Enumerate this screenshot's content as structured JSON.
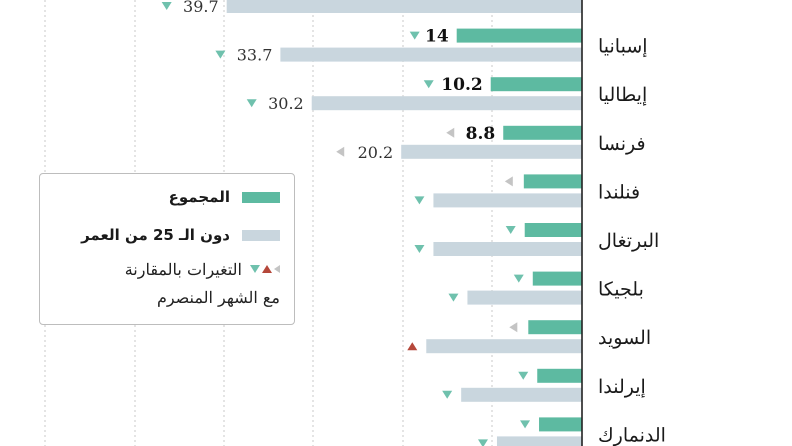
{
  "chart_data": {
    "type": "bar",
    "orientation": "horizontal",
    "grid": true,
    "series": [
      {
        "key": "total",
        "name": "المجموع",
        "color": "#5dbaa1"
      },
      {
        "key": "youth",
        "name": "دون الـ 25 من العمر",
        "color": "#c9d6de"
      }
    ],
    "rows": [
      {
        "country": "",
        "total": null,
        "youth": 39.7,
        "total_label": "",
        "youth_label": "39.7",
        "total_change": null,
        "youth_change": "down"
      },
      {
        "country": "إسبانيا",
        "total": 14,
        "youth": 33.7,
        "total_label": "14",
        "youth_label": "33.7",
        "total_change": "down",
        "youth_change": "down"
      },
      {
        "country": "إيطاليا",
        "total": 10.2,
        "youth": 30.2,
        "total_label": "10.2",
        "youth_label": "30.2",
        "total_change": "down",
        "youth_change": "down"
      },
      {
        "country": "فرنسا",
        "total": 8.8,
        "youth": 20.2,
        "total_label": "8.8",
        "youth_label": "20.2",
        "total_change": "flat",
        "youth_change": "flat"
      },
      {
        "country": "فنلندا",
        "total": 6.5,
        "youth": 16.6,
        "total_label": "",
        "youth_label": "",
        "total_change": "flat",
        "youth_change": "down"
      },
      {
        "country": "البرتغال",
        "total": 6.4,
        "youth": 16.6,
        "total_label": "",
        "youth_label": "",
        "total_change": "down",
        "youth_change": "down"
      },
      {
        "country": "بلجيكا",
        "total": 5.5,
        "youth": 12.8,
        "total_label": "",
        "youth_label": "",
        "total_change": "down",
        "youth_change": "down"
      },
      {
        "country": "السويد",
        "total": 6.0,
        "youth": 17.4,
        "total_label": "",
        "youth_label": "",
        "total_change": "flat",
        "youth_change": "up"
      },
      {
        "country": "إيرلندا",
        "total": 5.0,
        "youth": 13.5,
        "total_label": "",
        "youth_label": "",
        "total_change": "down",
        "youth_change": "down"
      },
      {
        "country": "الدنمارك",
        "total": 4.8,
        "youth": 9.5,
        "total_label": "",
        "youth_label": "",
        "total_change": "down",
        "youth_change": "down"
      }
    ],
    "change_colors": {
      "down": "#6fc1ad",
      "up": "#b5473a",
      "flat": "#c4c4c4"
    }
  },
  "legend": {
    "total_label": "المجموع",
    "youth_label": "دون الـ 25 من العمر",
    "changes_line1": "التغيرات بالمقارنة",
    "changes_line2": "مع الشهر المنصرم"
  }
}
